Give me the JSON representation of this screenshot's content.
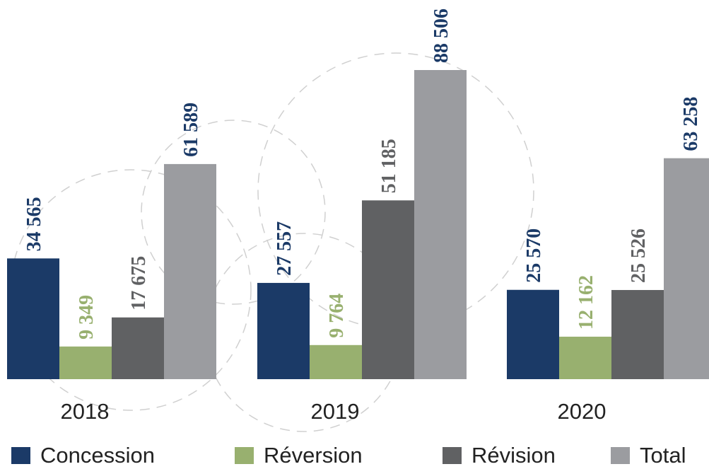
{
  "chart_data": {
    "type": "bar",
    "categories": [
      "2018",
      "2019",
      "2020"
    ],
    "series": [
      {
        "name": "Concession",
        "color": "#1b3a67",
        "label_color": "#1b3a67",
        "values": [
          34565,
          27557,
          25570
        ],
        "labels": [
          "34 565",
          "27 557",
          "25 570"
        ]
      },
      {
        "name": "Réversion",
        "color": "#98b06f",
        "label_color": "#98b06f",
        "values": [
          9349,
          9764,
          12162
        ],
        "labels": [
          "9 349",
          "9 764",
          "12 162"
        ]
      },
      {
        "name": "Révision",
        "color": "#606163",
        "label_color": "#606163",
        "values": [
          17675,
          51185,
          25526
        ],
        "labels": [
          "17 675",
          "51 185",
          "25 526"
        ]
      },
      {
        "name": "Total",
        "color": "#9b9ca0",
        "label_color": "#1b3a67",
        "values": [
          61589,
          88506,
          63258
        ],
        "labels": [
          "61 589",
          "88 506",
          "63 258"
        ]
      }
    ],
    "ylim": [
      0,
      88506
    ],
    "grid": false,
    "legend_position": "bottom"
  }
}
